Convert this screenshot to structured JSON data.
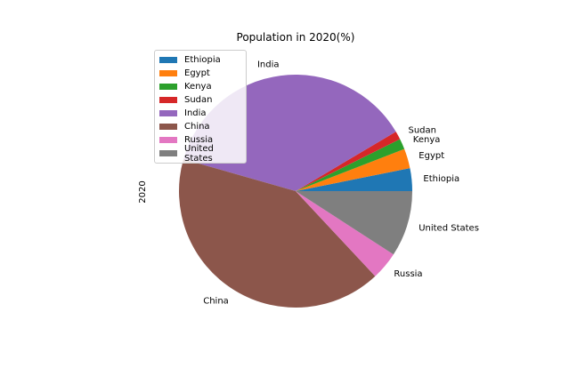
{
  "chart_data": {
    "type": "pie",
    "title": "Population in 2020(%)",
    "ylabel": "2020",
    "legend_position": "upper-left",
    "categories": [
      "Ethiopia",
      "Egypt",
      "Kenya",
      "Sudan",
      "India",
      "China",
      "Russia",
      "United States"
    ],
    "values": [
      3.0,
      2.6,
      1.4,
      1.1,
      35.2,
      39.3,
      3.7,
      8.7
    ],
    "colors": [
      "#1f77b4",
      "#ff7f0e",
      "#2ca02c",
      "#d62728",
      "#9467bd",
      "#8c564b",
      "#e377c2",
      "#7f7f7f"
    ]
  }
}
